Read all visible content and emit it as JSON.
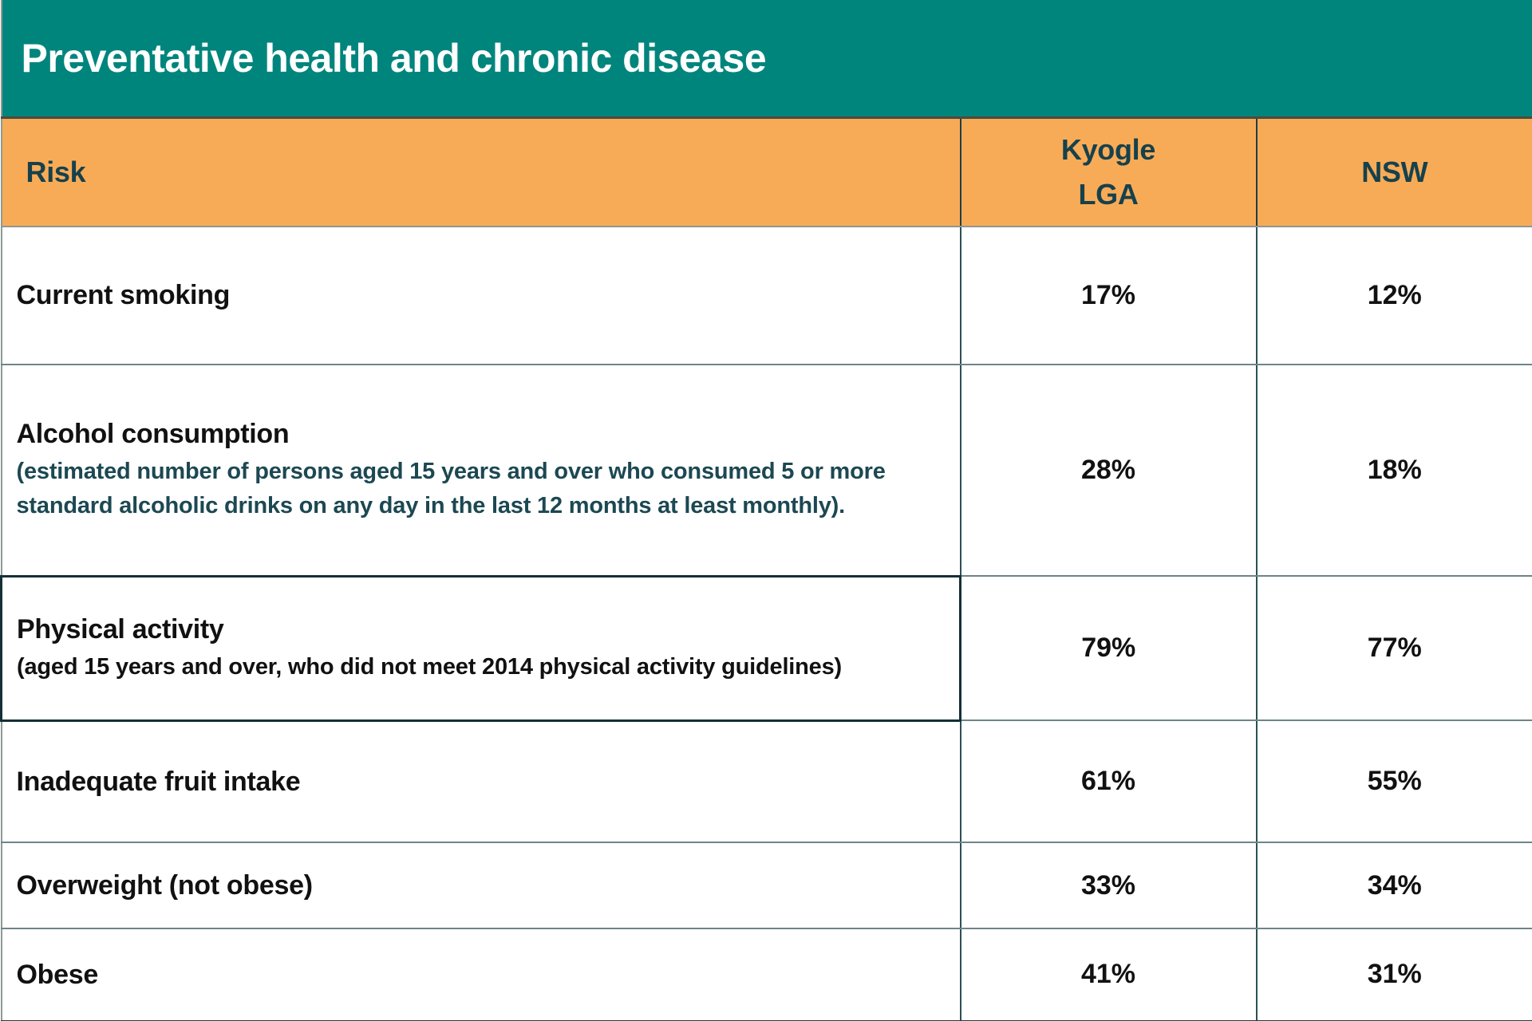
{
  "title": "Preventative health and chronic disease",
  "colors": {
    "title_bar": "#00857D",
    "header_row": "#F8AB57",
    "header_text": "#16414C",
    "note_accent": "#1C4852",
    "body_text": "#111111",
    "highlight_border": "#152F36"
  },
  "table": {
    "columns": [
      {
        "label": "Risk"
      },
      {
        "label": "Kyogle\nLGA"
      },
      {
        "label": "NSW"
      }
    ],
    "rows": [
      {
        "risk": "Current smoking",
        "kyogle": "17%",
        "nsw": "12%"
      },
      {
        "risk": "Alcohol consumption",
        "note": "(estimated number of persons aged 15 years and over who consumed 5 or more standard alcoholic drinks on any day in the last 12 months at least monthly).",
        "kyogle": "28%",
        "nsw": "18%"
      },
      {
        "risk": "Physical activity",
        "note": "(aged 15 years and over, who did not meet 2014 physical activity guidelines)",
        "kyogle": "79%",
        "nsw": "77%",
        "highlighted": true
      },
      {
        "risk": "Inadequate fruit intake",
        "kyogle": "61%",
        "nsw": "55%"
      },
      {
        "risk": "Overweight (not obese)",
        "kyogle": "33%",
        "nsw": "34%"
      },
      {
        "risk": "Obese",
        "kyogle": "41%",
        "nsw": "31%"
      }
    ]
  }
}
